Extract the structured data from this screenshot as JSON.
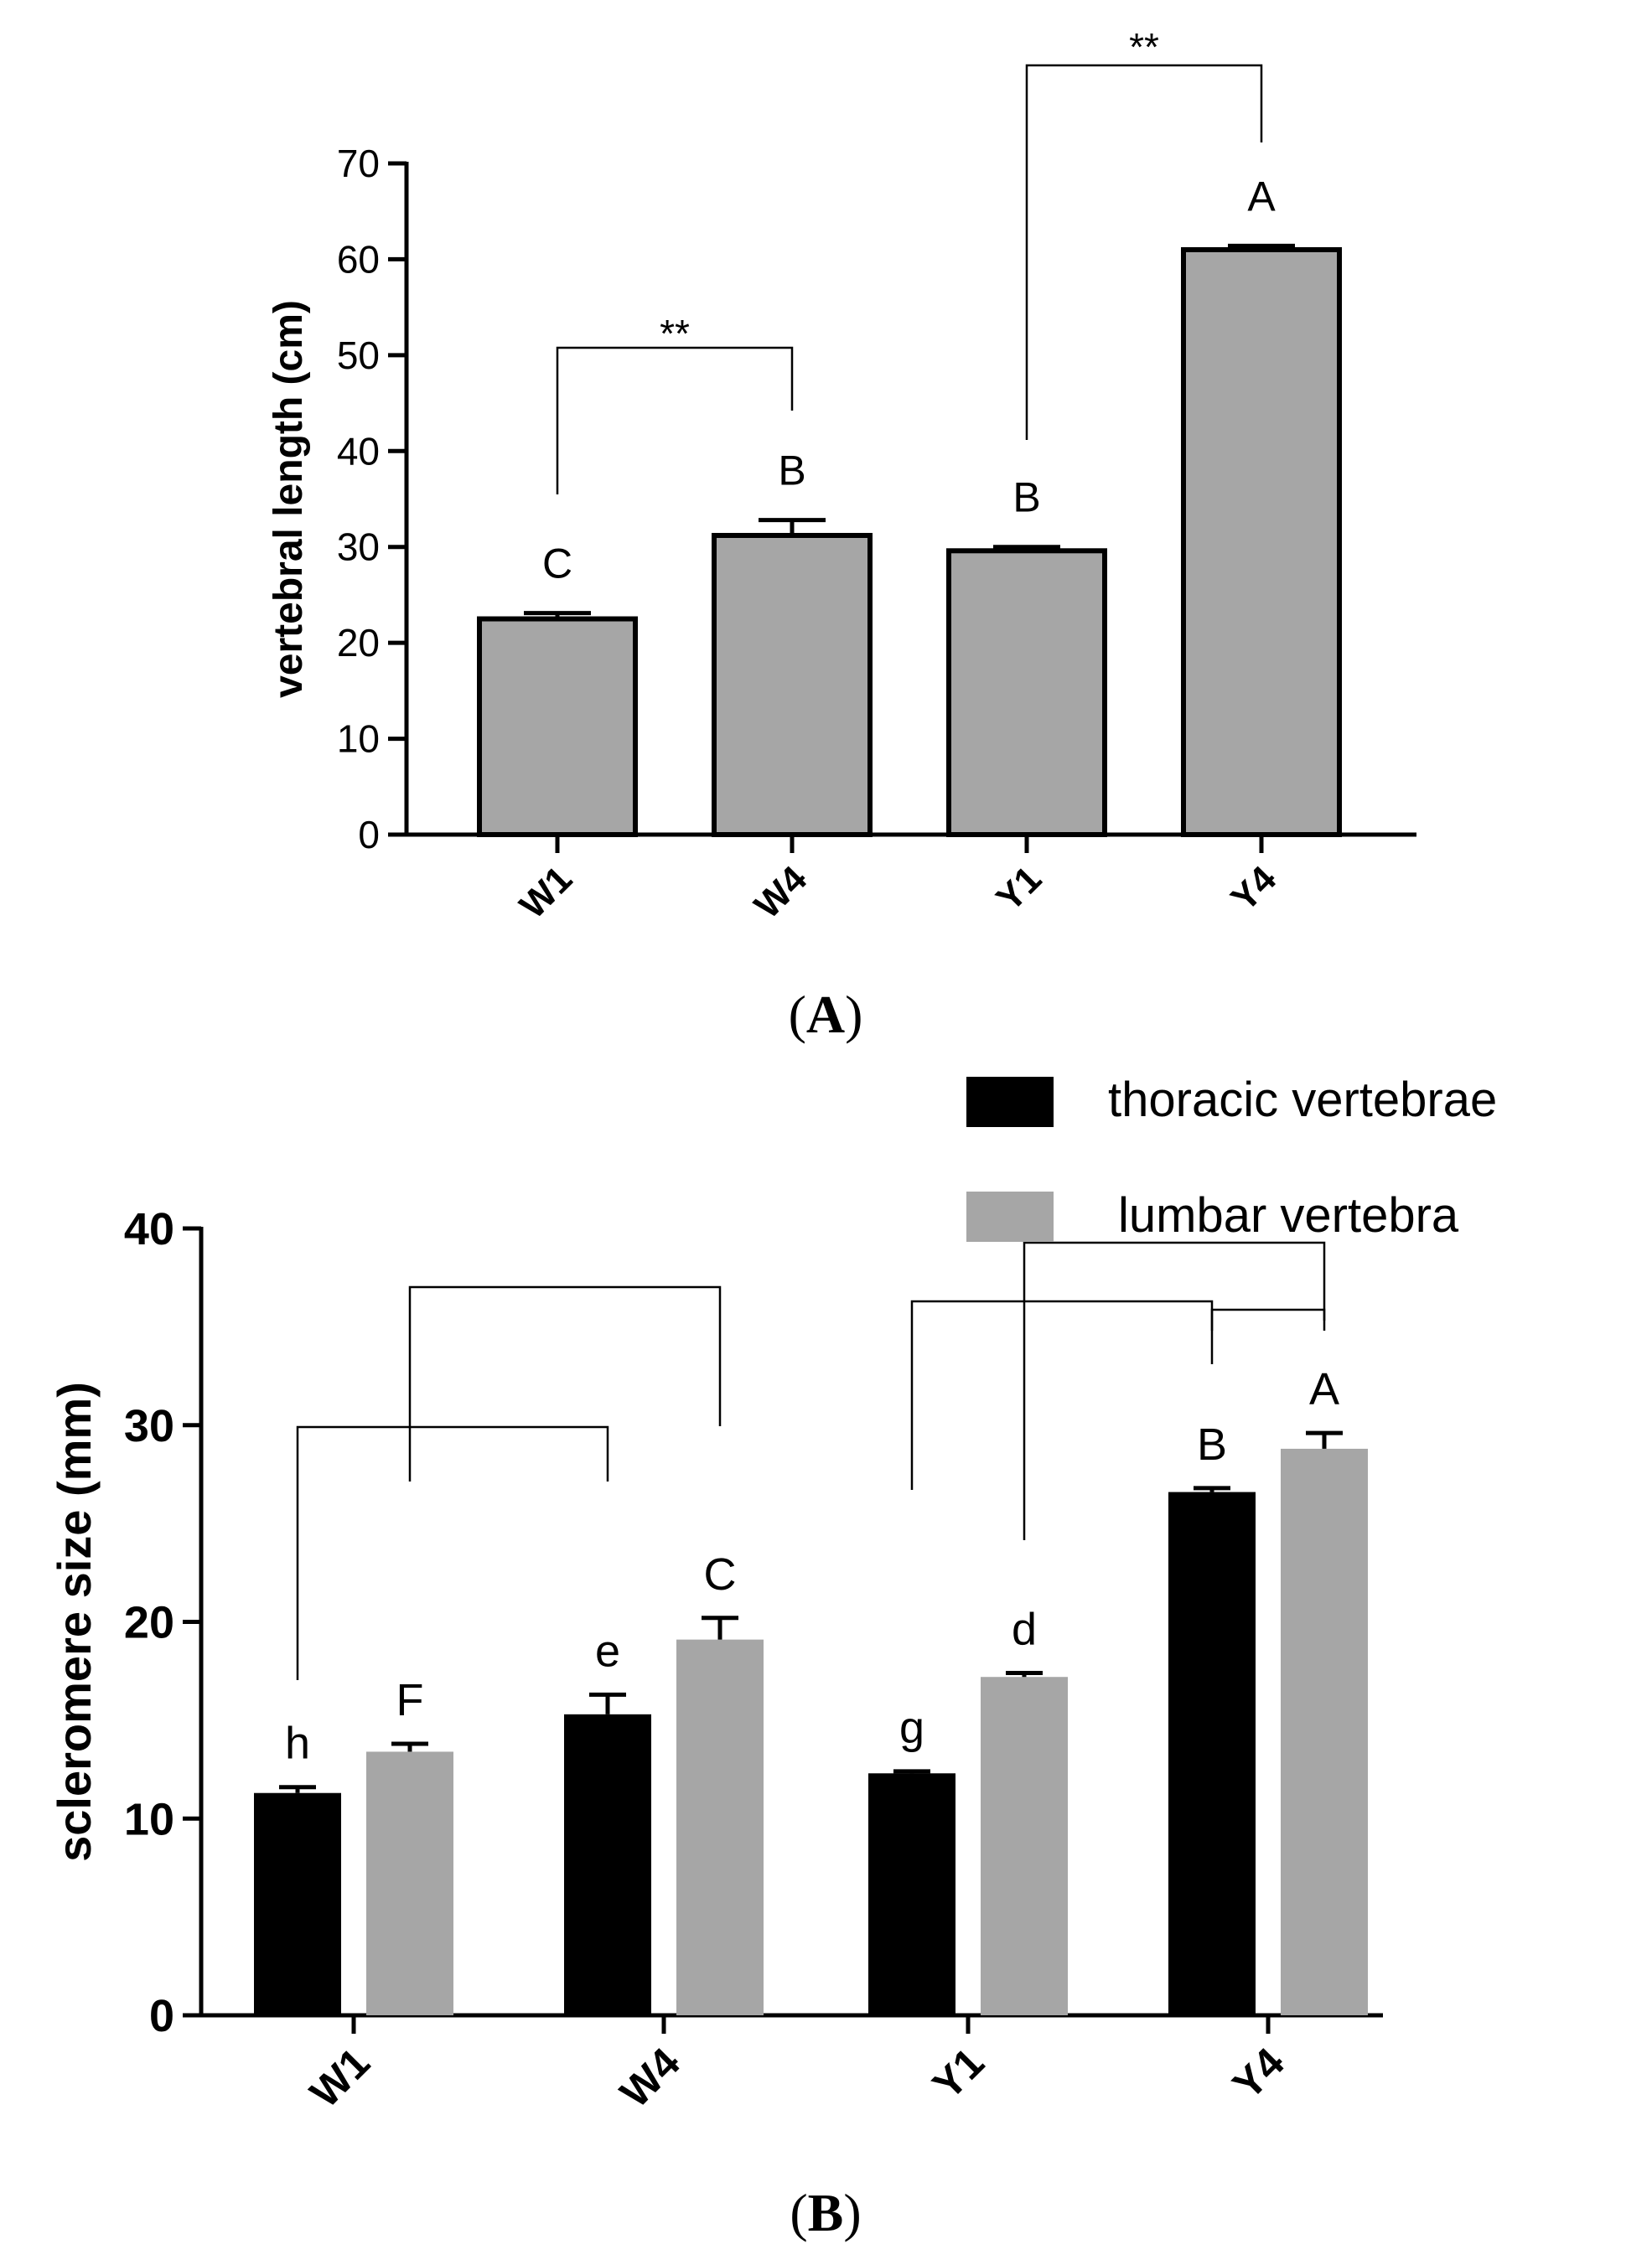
{
  "colors": {
    "panel_a_bar": "#a6a6a6",
    "thoracic": "#000000",
    "lumbar": "#a6a6a6",
    "axis": "#000000"
  },
  "chart_data": [
    {
      "panel": "A",
      "type": "bar",
      "ylabel": "vertebral length (cm)",
      "xlabel": "",
      "ylim": [
        0,
        70
      ],
      "yticks": [
        0,
        10,
        20,
        30,
        40,
        50,
        60,
        70
      ],
      "categories": [
        "W1",
        "W4",
        "Y1",
        "Y4"
      ],
      "series": [
        {
          "values": [
            22.5,
            31.2,
            29.6,
            61.0
          ],
          "errors": [
            0.6,
            1.6,
            0.4,
            0.4
          ],
          "letters": [
            "C",
            "B",
            "B",
            "A"
          ]
        }
      ],
      "significance": [
        {
          "from": "W1",
          "to": "W4",
          "label": "**"
        },
        {
          "from": "Y1",
          "to": "Y4",
          "label": "**"
        }
      ],
      "grid": false,
      "caption_open": "(",
      "caption_letter": "A",
      "caption_close": ")"
    },
    {
      "panel": "B",
      "type": "bar",
      "ylabel": "scleromere size (mm)",
      "xlabel": "",
      "ylim": [
        0,
        40
      ],
      "yticks": [
        0,
        10,
        20,
        30,
        40
      ],
      "categories": [
        "W1",
        "W4",
        "Y1",
        "Y4"
      ],
      "series": [
        {
          "name": "thoracic vertebrae",
          "values": [
            11.3,
            15.3,
            12.3,
            26.6
          ],
          "errors": [
            0.3,
            1.0,
            0.1,
            0.2
          ],
          "letters": [
            "h",
            "e",
            "g",
            "B"
          ]
        },
        {
          "name": "lumbar vertebra",
          "values": [
            13.4,
            19.1,
            17.2,
            28.8
          ],
          "errors": [
            0.4,
            1.1,
            0.2,
            0.8
          ],
          "letters": [
            "F",
            "C",
            "d",
            "A"
          ]
        }
      ],
      "brackets": [
        {
          "from": "W1 thoracic vertebrae",
          "to": "W4 thoracic vertebrae"
        },
        {
          "from": "W1 lumbar vertebra",
          "to": "W4 lumbar vertebra"
        },
        {
          "from": "Y1 thoracic vertebrae",
          "to": "Y4 thoracic vertebrae"
        },
        {
          "from": "Y1 lumbar vertebra",
          "to": "Y4 lumbar vertebra"
        },
        {
          "from": "Y4 thoracic vertebrae",
          "to": "Y4 lumbar vertebra"
        }
      ],
      "legend_position": "top-right",
      "grid": false,
      "caption_open": "(",
      "caption_letter": "B",
      "caption_close": ")"
    }
  ]
}
